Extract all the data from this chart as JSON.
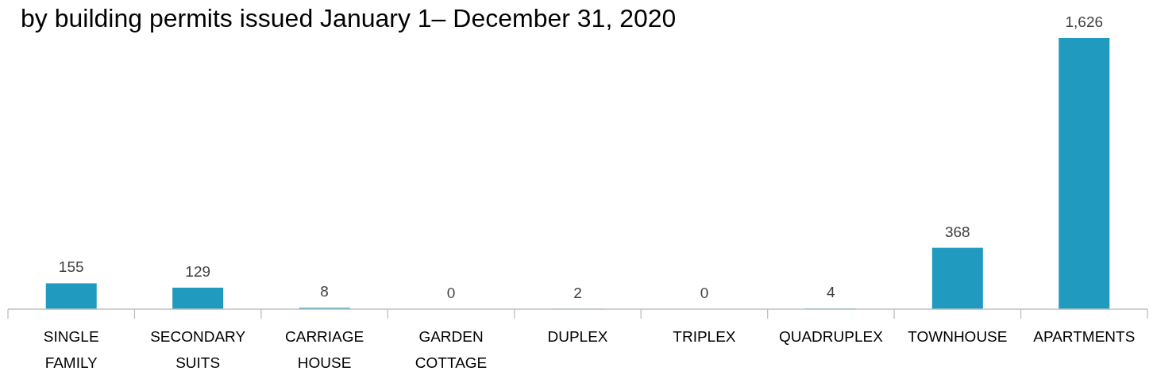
{
  "chart_data": {
    "type": "bar",
    "title": "by building permits issued January 1– December 31, 2020",
    "categories": [
      "SINGLE FAMILY",
      "SECONDARY SUITS",
      "CARRIAGE HOUSE",
      "GARDEN COTTAGE",
      "DUPLEX",
      "TRIPLEX",
      "QUADRUPLEX",
      "TOWNHOUSE",
      "APARTMENTS"
    ],
    "values": [
      155,
      129,
      8,
      0,
      2,
      0,
      4,
      368,
      1626
    ],
    "color": "#219ac0",
    "value_labels": [
      "155",
      "129",
      "8",
      "0",
      "2",
      "0",
      "4",
      "368",
      "1,626"
    ]
  }
}
